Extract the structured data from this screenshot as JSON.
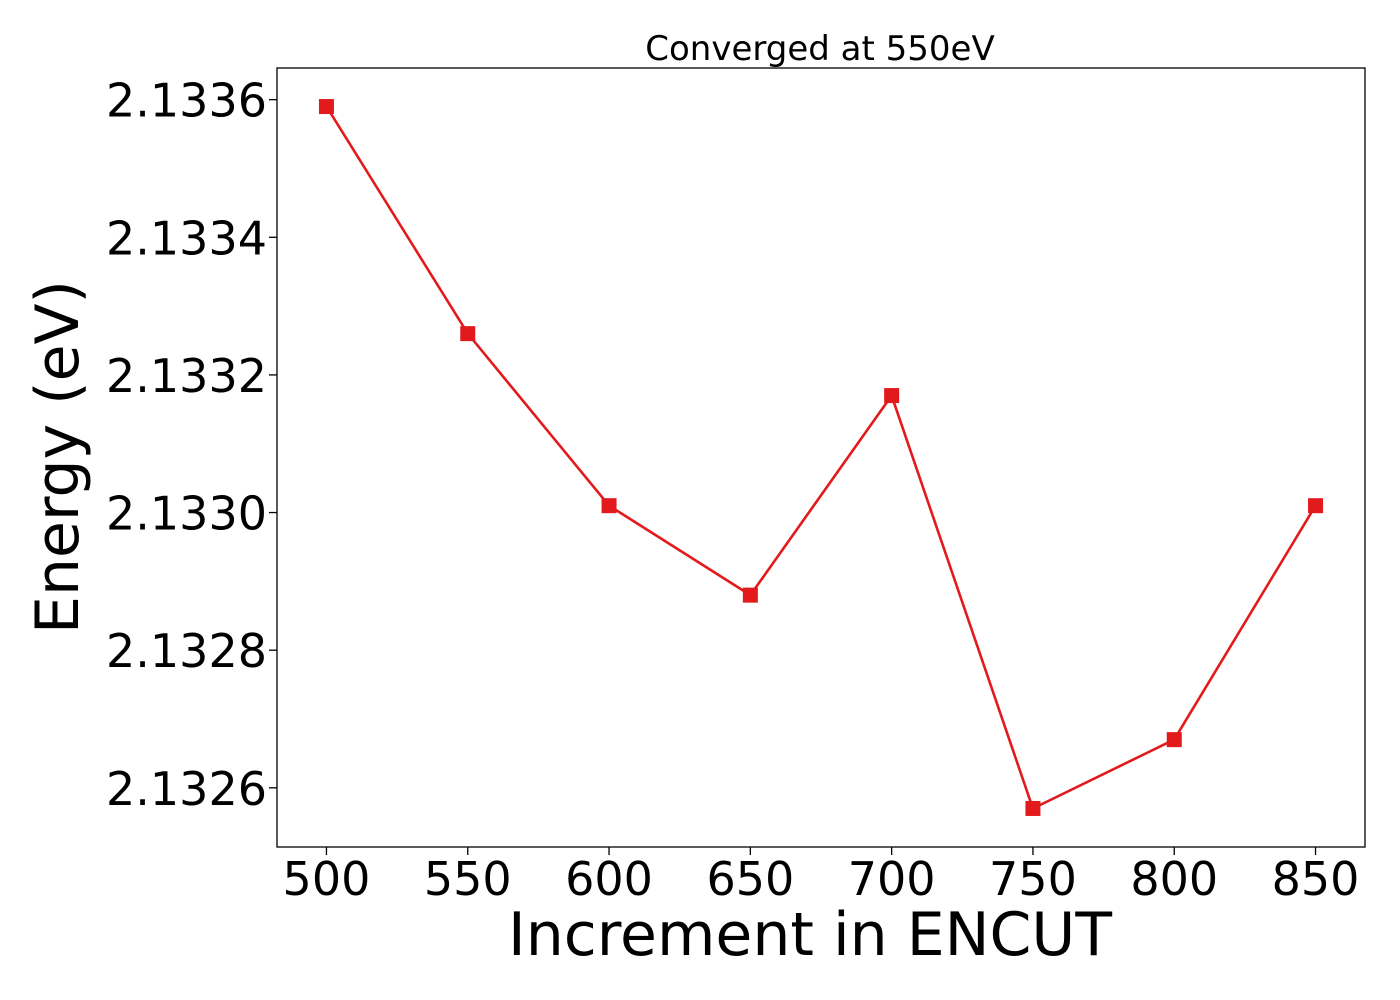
{
  "chart_data": {
    "type": "line",
    "title": "Converged at 550eV",
    "xlabel": "Increment in ENCUT",
    "ylabel": "Energy (eV)",
    "x": [
      500,
      550,
      600,
      650,
      700,
      750,
      800,
      850
    ],
    "series": [
      {
        "values": [
          2.13359,
          2.13326,
          2.13301,
          2.13288,
          2.13317,
          2.13257,
          2.13267,
          2.13301
        ],
        "color": "#e31a1c",
        "marker": "square"
      }
    ],
    "xticks": [
      "500",
      "550",
      "600",
      "650",
      "700",
      "750",
      "800",
      "850"
    ],
    "yticks": [
      "2.1326",
      "2.1328",
      "2.1330",
      "2.1332",
      "2.1334",
      "2.1336"
    ],
    "xlim": [
      482.5,
      867.5
    ],
    "ylim": [
      2.132514,
      2.133646
    ],
    "grid": false
  }
}
